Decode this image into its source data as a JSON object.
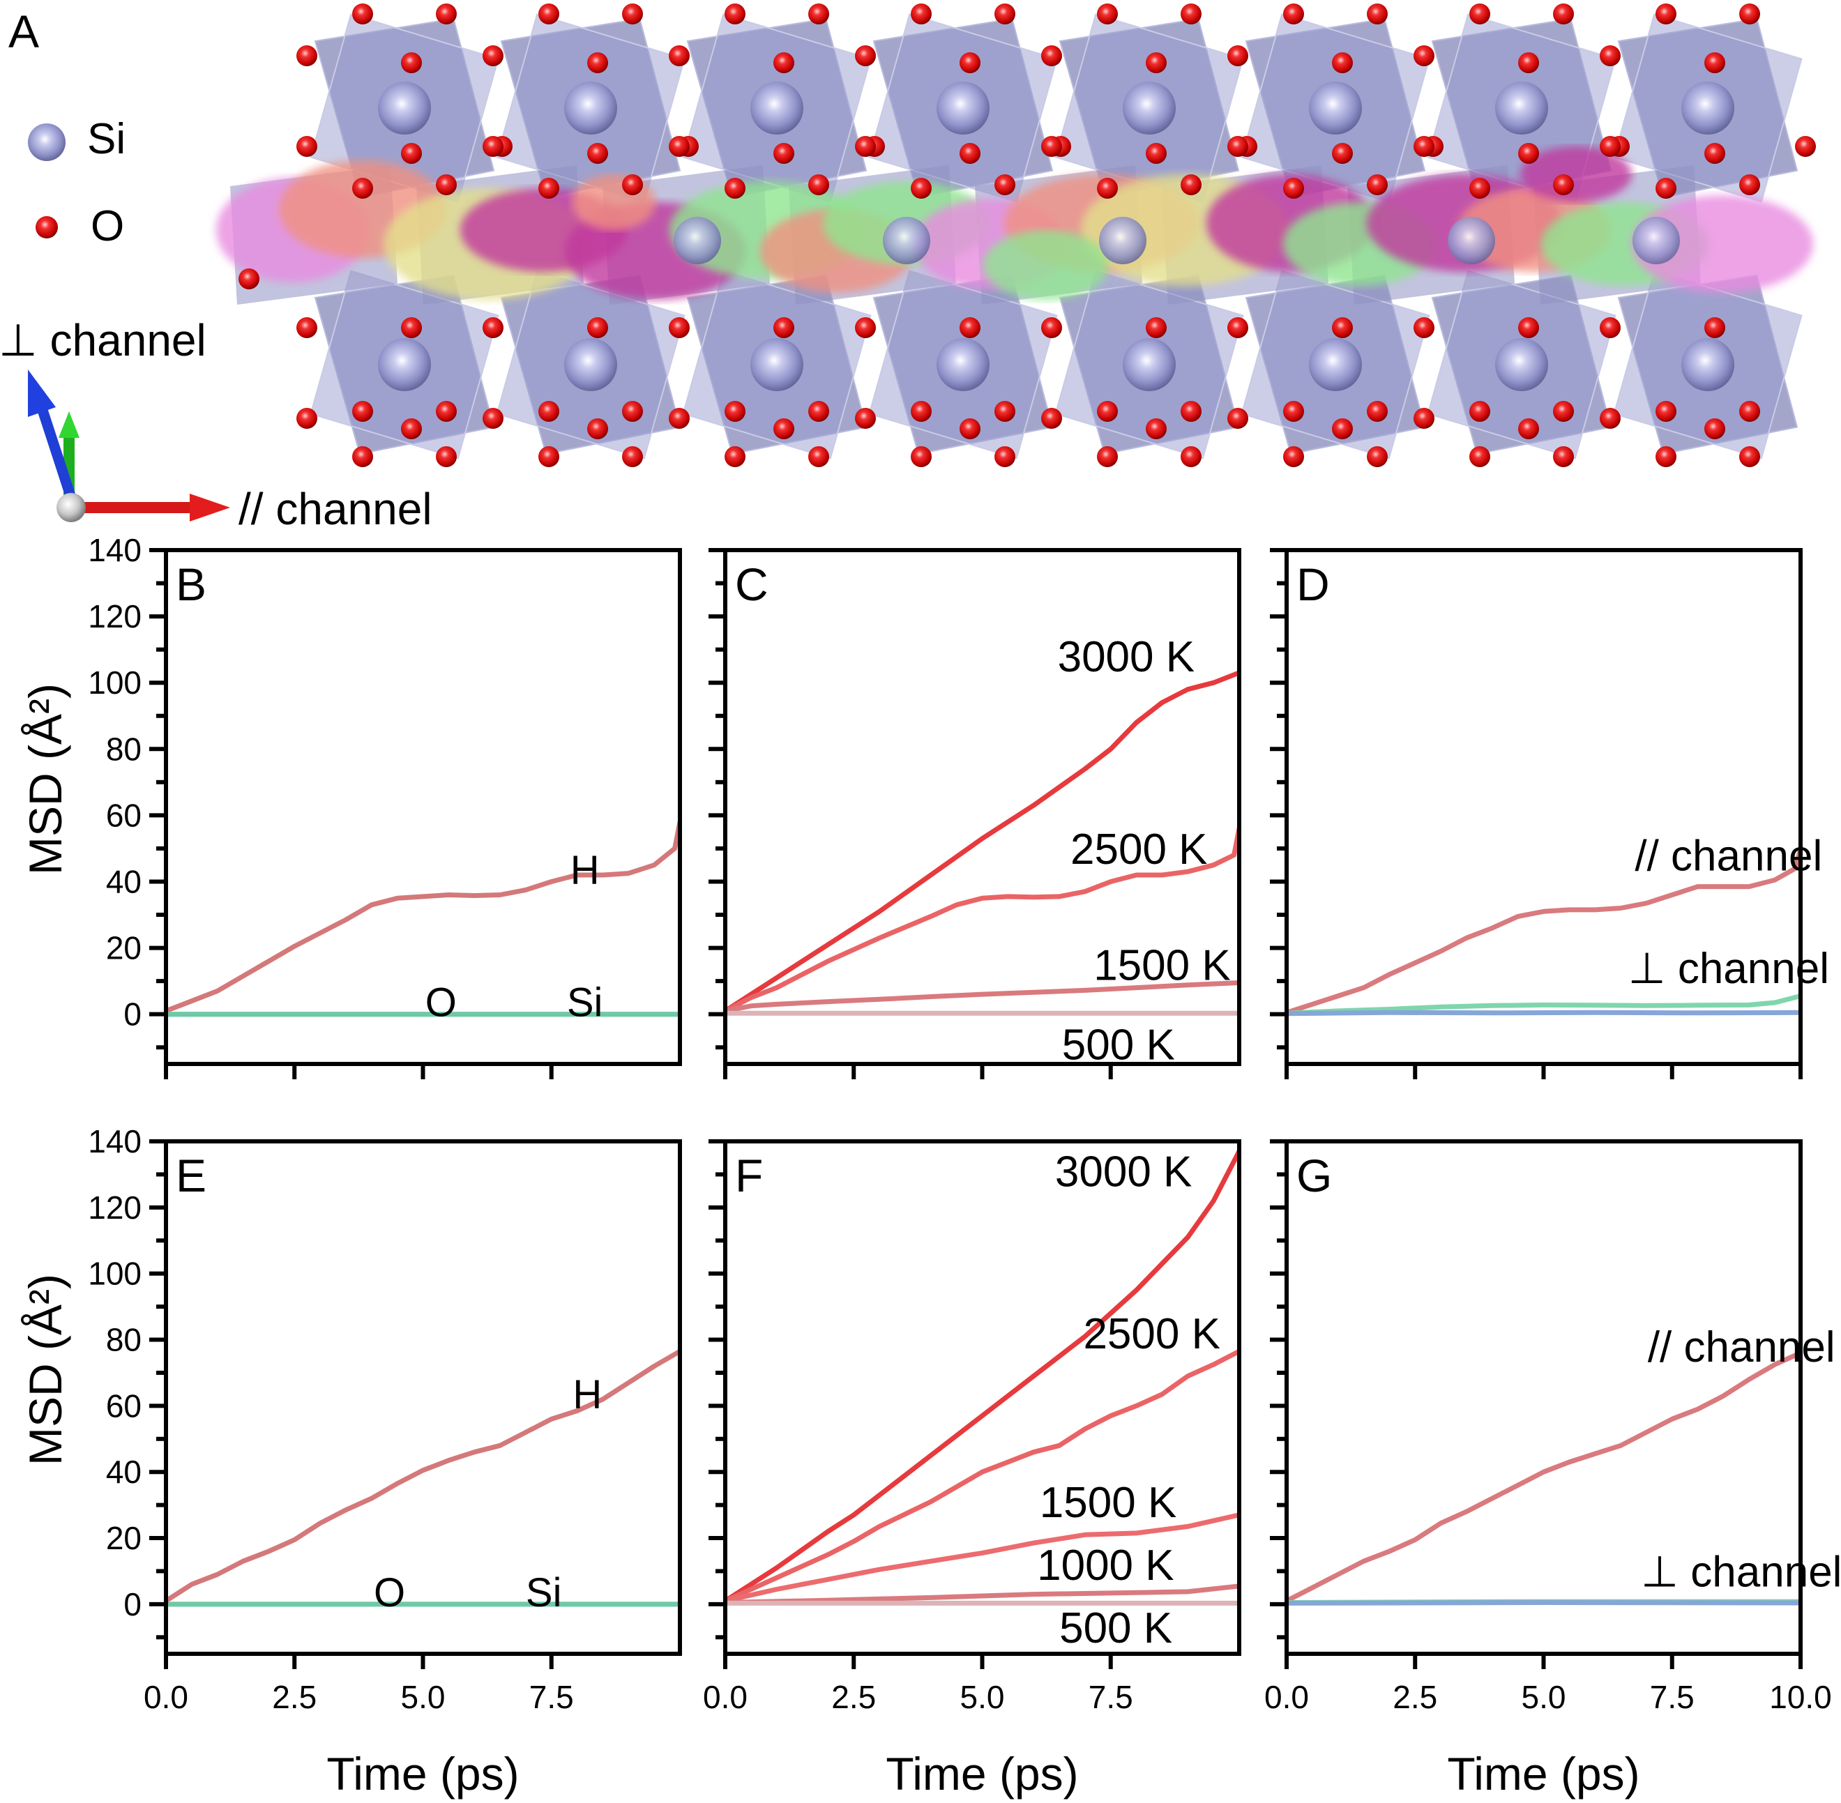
{
  "panel_a": {
    "label": "A",
    "legend": [
      {
        "symbol": "si-atom",
        "label": "Si",
        "color": "#8c8fc4"
      },
      {
        "symbol": "o-atom",
        "label": "O",
        "color": "#e01010"
      }
    ],
    "axis_perp_label": "⊥ channel",
    "axis_par_label": "// channel",
    "trajectory_colors": [
      "#e88ce0",
      "#e4df8c",
      "#c13a9e",
      "#8ee58e",
      "#f09080"
    ],
    "polyhedra_color": "#8487b8"
  },
  "chart_data": [
    {
      "id": "B",
      "panel_label": "B",
      "type": "line",
      "xlabel": "Time (ps)",
      "ylabel": "MSD (Å²)",
      "xlim": [
        0,
        10
      ],
      "ylim": [
        -15,
        140
      ],
      "xticks": [
        0,
        2.5,
        5,
        7.5
      ],
      "xticklabels_visible": false,
      "yticks": [
        0,
        20,
        40,
        60,
        80,
        100,
        120,
        140
      ],
      "yticklabels_visible": true,
      "series": [
        {
          "name": "H",
          "color": "#d4787a",
          "x": [
            0,
            0.5,
            1,
            1.5,
            2,
            2.5,
            3,
            3.5,
            4,
            4.5,
            5,
            5.5,
            6,
            6.5,
            7,
            7.5,
            8,
            8.5,
            9,
            9.5,
            9.9,
            10
          ],
          "y": [
            1,
            4,
            7,
            11.5,
            16,
            20.5,
            24.5,
            28.5,
            33,
            35,
            35.5,
            36,
            35.8,
            36,
            37.5,
            40,
            42,
            42,
            42.5,
            45,
            50,
            58
          ]
        },
        {
          "name": "O",
          "color": "#7fd6ac",
          "x": [
            0,
            10
          ],
          "y": [
            0,
            0
          ]
        },
        {
          "name": "Si",
          "color": "#6fc9a6",
          "x": [
            0,
            10
          ],
          "y": [
            0,
            0
          ]
        }
      ],
      "annotations": [
        {
          "text": "H",
          "x": 8.15,
          "y": 44
        },
        {
          "text": "O",
          "x": 5.35,
          "y": 4
        },
        {
          "text": "Si",
          "x": 8.15,
          "y": 4
        }
      ]
    },
    {
      "id": "C",
      "panel_label": "C",
      "type": "line",
      "xlabel": "Time (ps)",
      "ylabel": "",
      "xlim": [
        0,
        10
      ],
      "ylim": [
        -15,
        140
      ],
      "xticks": [
        0,
        2.5,
        5,
        7.5
      ],
      "xticklabels_visible": false,
      "yticks": [
        0,
        20,
        40,
        60,
        80,
        100,
        120,
        140
      ],
      "yticklabels_visible": false,
      "series": [
        {
          "name": "3000 K",
          "color": "#e63a3d",
          "x": [
            0,
            1,
            2,
            3,
            4,
            5,
            6,
            7,
            7.5,
            8,
            8.5,
            9,
            9.5,
            10
          ],
          "y": [
            1,
            11,
            21,
            31,
            42,
            53,
            63,
            74,
            80,
            88,
            94,
            98,
            100,
            103
          ]
        },
        {
          "name": "2500 K",
          "color": "#ea6466",
          "x": [
            0,
            0.5,
            1,
            2,
            3,
            4,
            4.5,
            5,
            5.5,
            6,
            6.5,
            7,
            7.5,
            8,
            8.5,
            9,
            9.5,
            9.9,
            10
          ],
          "y": [
            1,
            5,
            8,
            16,
            23,
            29.5,
            33,
            35,
            35.5,
            35.3,
            35.5,
            37,
            40,
            42,
            42,
            43,
            45,
            48,
            56
          ]
        },
        {
          "name": "1500 K",
          "color": "#d97a7e",
          "x": [
            0,
            0.5,
            1,
            2,
            3,
            4,
            5,
            6,
            7,
            8,
            9,
            10
          ],
          "y": [
            1,
            2.5,
            3,
            3.8,
            4.5,
            5.3,
            6,
            6.6,
            7.2,
            8,
            8.8,
            9.5
          ]
        },
        {
          "name": "500 K",
          "color": "#dcb3b6",
          "x": [
            0,
            10
          ],
          "y": [
            0.3,
            0.3
          ]
        }
      ],
      "annotations": [
        {
          "text": "3000 K",
          "x": 7.8,
          "y": 108
        },
        {
          "text": "2500 K",
          "x": 8.05,
          "y": 50
        },
        {
          "text": "1500 K",
          "x": 8.5,
          "y": 15
        },
        {
          "text": "500 K",
          "x": 7.65,
          "y": -9
        }
      ]
    },
    {
      "id": "D",
      "panel_label": "D",
      "type": "line",
      "xlabel": "Time (ps)",
      "ylabel": "",
      "xlim": [
        0,
        10
      ],
      "ylim": [
        -15,
        140
      ],
      "xticks": [
        0,
        2.5,
        5,
        7.5,
        10
      ],
      "xticklabels_visible": false,
      "yticks": [
        0,
        20,
        40,
        60,
        80,
        100,
        120,
        140
      ],
      "yticklabels_visible": false,
      "series": [
        {
          "name": "// channel",
          "color": "#d97a7e",
          "x": [
            0,
            0.5,
            1,
            1.5,
            2,
            2.5,
            3,
            3.5,
            4,
            4.5,
            5,
            5.5,
            6,
            6.5,
            7,
            7.5,
            8,
            8.5,
            9,
            9.5,
            9.9,
            10
          ],
          "y": [
            0.5,
            3,
            5.5,
            8,
            12,
            15.5,
            19,
            23,
            26,
            29.5,
            31,
            31.5,
            31.5,
            32,
            33.5,
            36,
            38.5,
            38.5,
            38.5,
            40.5,
            44,
            50
          ]
        },
        {
          "name": "⊥ channel (green)",
          "color": "#7fd6ac",
          "x": [
            0,
            1,
            2,
            3,
            4,
            5,
            6,
            7,
            8,
            9,
            9.5,
            10
          ],
          "y": [
            0.3,
            1,
            1.5,
            2.2,
            2.6,
            2.8,
            2.7,
            2.6,
            2.7,
            2.8,
            3.5,
            5.5
          ]
        },
        {
          "name": "⊥ channel (blue)",
          "color": "#86a6d8",
          "x": [
            0,
            2,
            4,
            6,
            8,
            10
          ],
          "y": [
            0.2,
            0.5,
            0.4,
            0.5,
            0.4,
            0.5
          ]
        }
      ],
      "annotations": [
        {
          "text": "// channel",
          "x": 8.6,
          "y": 48
        },
        {
          "text": "⊥ channel",
          "x": 8.6,
          "y": 14
        }
      ]
    },
    {
      "id": "E",
      "panel_label": "E",
      "type": "line",
      "xlabel": "Time (ps)",
      "ylabel": "MSD (Å²)",
      "xlim": [
        0,
        10
      ],
      "ylim": [
        -15,
        140
      ],
      "xticks": [
        0,
        2.5,
        5,
        7.5
      ],
      "xticklabels": [
        "0.0",
        "2.5",
        "5.0",
        "7.5"
      ],
      "xticklabels_visible": true,
      "yticks": [
        0,
        20,
        40,
        60,
        80,
        100,
        120,
        140
      ],
      "yticklabels_visible": true,
      "series": [
        {
          "name": "H",
          "color": "#d4787a",
          "x": [
            0,
            0.5,
            1,
            1.5,
            2,
            2.5,
            3,
            3.5,
            4,
            4.5,
            5,
            5.5,
            6,
            6.5,
            7,
            7.5,
            8,
            8.5,
            9,
            9.5,
            10
          ],
          "y": [
            1,
            6,
            9,
            13,
            16,
            19.5,
            24.5,
            28.5,
            32,
            36.5,
            40.5,
            43.5,
            46,
            48,
            52,
            56,
            58.5,
            62,
            67,
            72,
            76.5
          ]
        },
        {
          "name": "O",
          "color": "#7fd6ac",
          "x": [
            0,
            10
          ],
          "y": [
            0,
            0
          ]
        },
        {
          "name": "Si",
          "color": "#6fc9a6",
          "x": [
            0,
            10
          ],
          "y": [
            0,
            0
          ]
        }
      ],
      "annotations": [
        {
          "text": "H",
          "x": 8.2,
          "y": 64
        },
        {
          "text": "O",
          "x": 4.35,
          "y": 4
        },
        {
          "text": "Si",
          "x": 7.35,
          "y": 4
        }
      ]
    },
    {
      "id": "F",
      "panel_label": "F",
      "type": "line",
      "xlabel": "Time (ps)",
      "ylabel": "",
      "xlim": [
        0,
        10
      ],
      "ylim": [
        -15,
        140
      ],
      "xticks": [
        0,
        2.5,
        5,
        7.5
      ],
      "xticklabels": [
        "0.0",
        "2.5",
        "5.0",
        "7.5"
      ],
      "xticklabels_visible": true,
      "yticks": [
        0,
        20,
        40,
        60,
        80,
        100,
        120,
        140
      ],
      "yticklabels_visible": false,
      "series": [
        {
          "name": "3000 K",
          "color": "#e63a3d",
          "x": [
            0,
            1,
            2,
            2.5,
            3,
            4,
            5,
            6,
            7,
            7.5,
            8,
            8.5,
            9,
            9.5,
            10
          ],
          "y": [
            1,
            11,
            22,
            27,
            33,
            45,
            57,
            69,
            81,
            88,
            95,
            103,
            111,
            122,
            137
          ]
        },
        {
          "name": "2500 K",
          "color": "#ea6466",
          "x": [
            0,
            1,
            2,
            2.5,
            3,
            4,
            5,
            5.5,
            6,
            6.5,
            7,
            7.5,
            8,
            8.5,
            9,
            9.5,
            10
          ],
          "y": [
            1,
            8,
            15,
            19,
            23.5,
            31,
            40,
            43,
            46,
            48,
            53,
            57,
            60,
            63.5,
            69,
            72.5,
            76.5
          ]
        },
        {
          "name": "1500 K",
          "color": "#ec6b6e",
          "x": [
            0,
            1,
            2,
            3,
            4,
            5,
            6,
            7,
            8,
            9,
            10
          ],
          "y": [
            1,
            4.5,
            7.5,
            10.5,
            13,
            15.5,
            18.5,
            21,
            21.5,
            23.5,
            27
          ]
        },
        {
          "name": "1000 K",
          "color": "#d97a7e",
          "x": [
            0,
            2,
            4,
            6,
            8,
            9,
            10
          ],
          "y": [
            0.5,
            1.2,
            2,
            3,
            3.5,
            3.8,
            5.5
          ]
        },
        {
          "name": "500 K",
          "color": "#dcb3b6",
          "x": [
            0,
            10
          ],
          "y": [
            0.3,
            0.3
          ]
        }
      ],
      "annotations": [
        {
          "text": "3000 K",
          "x": 7.75,
          "y": 131
        },
        {
          "text": "2500 K",
          "x": 8.3,
          "y": 82
        },
        {
          "text": "1500 K",
          "x": 7.45,
          "y": 31
        },
        {
          "text": "1000 K",
          "x": 7.4,
          "y": 12
        },
        {
          "text": "500 K",
          "x": 7.6,
          "y": -7
        }
      ]
    },
    {
      "id": "G",
      "panel_label": "G",
      "type": "line",
      "xlabel": "Time (ps)",
      "ylabel": "",
      "xlim": [
        0,
        10
      ],
      "ylim": [
        -15,
        140
      ],
      "xticks": [
        0,
        2.5,
        5,
        7.5,
        10
      ],
      "xticklabels": [
        "0.0",
        "2.5",
        "5.0",
        "7.5",
        "10.0"
      ],
      "xticklabels_visible": true,
      "yticks": [
        0,
        20,
        40,
        60,
        80,
        100,
        120,
        140
      ],
      "yticklabels_visible": false,
      "series": [
        {
          "name": "// channel",
          "color": "#d97a7e",
          "x": [
            0,
            0.5,
            1,
            1.5,
            2,
            2.5,
            3,
            3.5,
            4,
            4.5,
            5,
            5.5,
            6,
            6.5,
            7,
            7.5,
            8,
            8.5,
            9,
            9.5,
            10
          ],
          "y": [
            1,
            5,
            9,
            13,
            16,
            19.5,
            24.5,
            28,
            32,
            36,
            40,
            43,
            45.5,
            48,
            52,
            56,
            59,
            63,
            68,
            72.5,
            76
          ]
        },
        {
          "name": "⊥ channel (green)",
          "color": "#7fd6ac",
          "x": [
            0,
            5,
            10
          ],
          "y": [
            0.5,
            0.8,
            0.8
          ]
        },
        {
          "name": "⊥ channel (blue)",
          "color": "#86a6d8",
          "x": [
            0,
            5,
            10
          ],
          "y": [
            0.3,
            0.5,
            0.4
          ]
        }
      ],
      "annotations": [
        {
          "text": "// channel",
          "x": 8.85,
          "y": 78
        },
        {
          "text": "⊥ channel",
          "x": 8.85,
          "y": 10
        }
      ]
    }
  ]
}
